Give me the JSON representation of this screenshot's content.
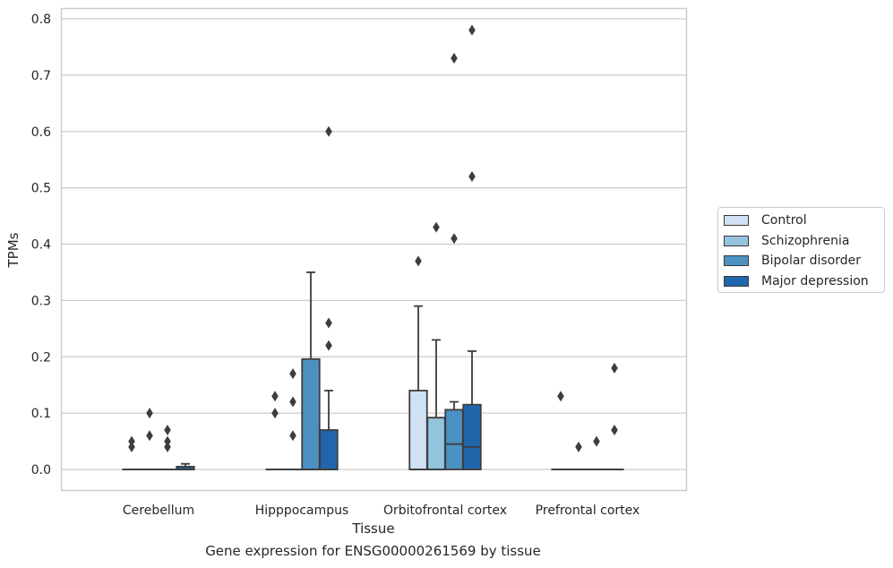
{
  "chart_data": {
    "type": "box",
    "title": "",
    "caption": "Gene expression for ENSG00000261569 by tissue",
    "xlabel": "Tissue",
    "ylabel": "TPMs",
    "ylim": [
      -0.038,
      0.82
    ],
    "yticks": [
      "0.0",
      "0.1",
      "0.2",
      "0.3",
      "0.4",
      "0.5",
      "0.6",
      "0.7",
      "0.8"
    ],
    "grid": true,
    "legend_position": "right",
    "categories": [
      "Cerebellum",
      "Hipppocampus",
      "Orbitofrontal cortex",
      "Prefrontal cortex"
    ],
    "series": [
      {
        "name": "Control",
        "color": "#cfe1f2",
        "boxes": [
          {
            "q1": 0,
            "median": 0,
            "q3": 0,
            "whisker_low": 0,
            "whisker_high": 0,
            "outliers": [
              0.04,
              0.05
            ]
          },
          {
            "q1": 0,
            "median": 0,
            "q3": 0,
            "whisker_low": 0,
            "whisker_high": 0,
            "outliers": [
              0.1,
              0.13
            ]
          },
          {
            "q1": 0,
            "median": 0,
            "q3": 0.14,
            "whisker_low": 0,
            "whisker_high": 0.29,
            "outliers": [
              0.37
            ]
          },
          {
            "q1": 0,
            "median": 0,
            "q3": 0,
            "whisker_low": 0,
            "whisker_high": 0,
            "outliers": [
              0.13
            ]
          }
        ]
      },
      {
        "name": "Schizophrenia",
        "color": "#93c4de",
        "boxes": [
          {
            "q1": 0,
            "median": 0,
            "q3": 0,
            "whisker_low": 0,
            "whisker_high": 0,
            "outliers": [
              0.06,
              0.1
            ]
          },
          {
            "q1": 0,
            "median": 0,
            "q3": 0,
            "whisker_low": 0,
            "whisker_high": 0,
            "outliers": [
              0.06,
              0.12,
              0.17
            ]
          },
          {
            "q1": 0,
            "median": 0,
            "q3": 0.092,
            "whisker_low": 0,
            "whisker_high": 0.23,
            "outliers": [
              0.43
            ]
          },
          {
            "q1": 0,
            "median": 0,
            "q3": 0,
            "whisker_low": 0,
            "whisker_high": 0,
            "outliers": [
              0.04
            ]
          }
        ]
      },
      {
        "name": "Bipolar disorder",
        "color": "#4b91c2",
        "boxes": [
          {
            "q1": 0,
            "median": 0,
            "q3": 0,
            "whisker_low": 0,
            "whisker_high": 0,
            "outliers": [
              0.04,
              0.05,
              0.07
            ]
          },
          {
            "q1": 0,
            "median": 0,
            "q3": 0.196,
            "whisker_low": 0,
            "whisker_high": 0.35,
            "outliers": []
          },
          {
            "q1": 0,
            "median": 0.045,
            "q3": 0.106,
            "whisker_low": 0,
            "whisker_high": 0.12,
            "outliers": [
              0.41,
              0.73
            ]
          },
          {
            "q1": 0,
            "median": 0,
            "q3": 0,
            "whisker_low": 0,
            "whisker_high": 0,
            "outliers": [
              0.05
            ]
          }
        ]
      },
      {
        "name": "Major depression",
        "color": "#2166ac",
        "boxes": [
          {
            "q1": 0,
            "median": 0,
            "q3": 0.005,
            "whisker_low": 0,
            "whisker_high": 0.01,
            "outliers": []
          },
          {
            "q1": 0,
            "median": 0,
            "q3": 0.07,
            "whisker_low": 0,
            "whisker_high": 0.14,
            "outliers": [
              0.22,
              0.26,
              0.6
            ]
          },
          {
            "q1": 0,
            "median": 0.04,
            "q3": 0.115,
            "whisker_low": 0,
            "whisker_high": 0.21,
            "outliers": [
              0.52,
              0.78
            ]
          },
          {
            "q1": 0,
            "median": 0,
            "q3": 0,
            "whisker_low": 0,
            "whisker_high": 0,
            "outliers": [
              0.07,
              0.18
            ]
          }
        ]
      }
    ]
  }
}
